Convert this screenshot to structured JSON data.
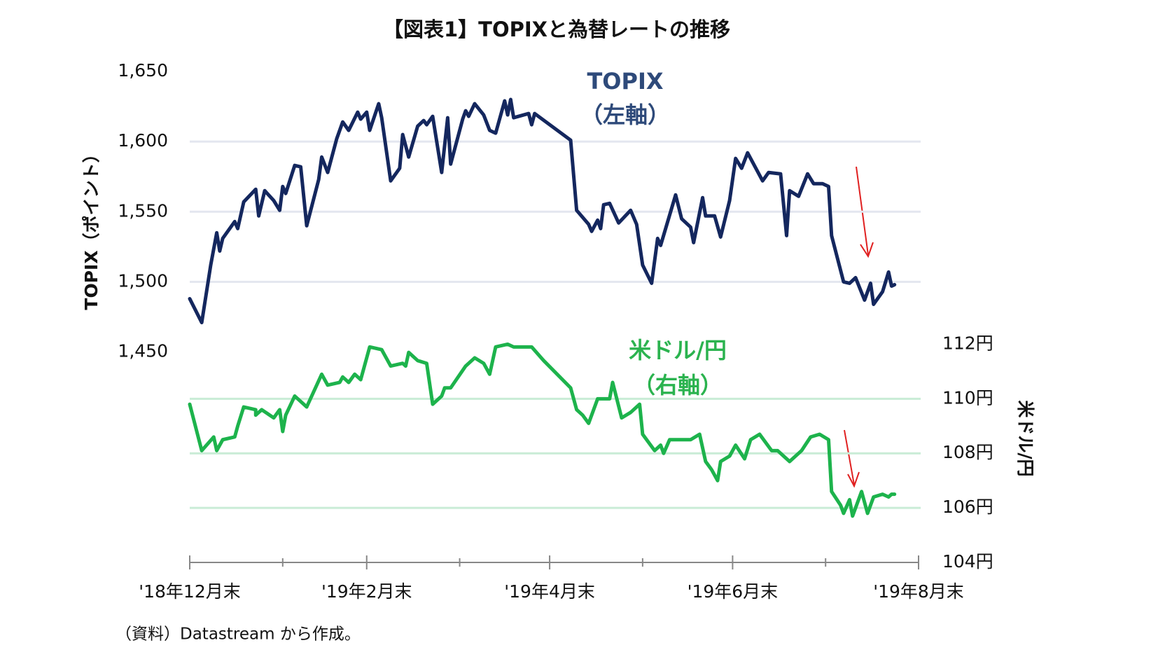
{
  "chart_data": {
    "type": "line",
    "title": "【図表1】TOPIXと為替レートの推移",
    "y_label": "TOPIX（ポイント）",
    "y2_label": "米ドル/円",
    "annotations": [
      "TOPIX",
      "（左軸）",
      "米ドル/円",
      "（右軸）"
    ],
    "source": "（資料）Datastream から作成。",
    "xlim": [
      0,
      243
    ],
    "xticks": [
      {
        "value": 0,
        "label": "'18年12月末"
      },
      {
        "value": 59,
        "label": "'19年2月末"
      },
      {
        "value": 120,
        "label": "'19年4月末"
      },
      {
        "value": 181,
        "label": "'19年6月末"
      },
      {
        "value": 243,
        "label": "'19年8月末"
      }
    ],
    "xminor": [
      31,
      90,
      151,
      212
    ],
    "ylim": [
      1300,
      1650
    ],
    "yticks": [
      {
        "value": 1450,
        "label": "1,450"
      },
      {
        "value": 1500,
        "label": "1,500"
      },
      {
        "value": 1550,
        "label": "1,550"
      },
      {
        "value": 1600,
        "label": "1,600"
      },
      {
        "value": 1650,
        "label": "1,650"
      }
    ],
    "y2lim": [
      104,
      122
    ],
    "y2ticks": [
      {
        "value": 104,
        "label": "104円"
      },
      {
        "value": 106,
        "label": "106円"
      },
      {
        "value": 108,
        "label": "108円"
      },
      {
        "value": 110,
        "label": "110円"
      },
      {
        "value": 112,
        "label": "112円"
      }
    ],
    "grid": true,
    "series": [
      {
        "name": "TOPIX",
        "color": "#14275e",
        "x": [
          0,
          4,
          7,
          9,
          10,
          11,
          15,
          16,
          18,
          22,
          23,
          25,
          28,
          30,
          31,
          32,
          35,
          37,
          39,
          43,
          44,
          46,
          49,
          51,
          53,
          56,
          57,
          59,
          60,
          63,
          64,
          67,
          70,
          71,
          73,
          76,
          78,
          79,
          81,
          84,
          86,
          87,
          91,
          92,
          93,
          95,
          98,
          100,
          102,
          105,
          106,
          107,
          108,
          113,
          114,
          115,
          127,
          129,
          133,
          134,
          136,
          137,
          138,
          140,
          143,
          147,
          149,
          151,
          154,
          156,
          157,
          162,
          164,
          167,
          168,
          171,
          172,
          175,
          177,
          180,
          182,
          184,
          186,
          191,
          193,
          197,
          199,
          200,
          203,
          206,
          208,
          211,
          213,
          214,
          218,
          220,
          222,
          225,
          227,
          228,
          231,
          233,
          234,
          235
        ],
        "values": [
          1488,
          1471,
          1512,
          1535,
          1522,
          1531,
          1543,
          1538,
          1557,
          1566,
          1547,
          1565,
          1558,
          1551,
          1568,
          1563,
          1583,
          1582,
          1540,
          1573,
          1589,
          1578,
          1602,
          1614,
          1608,
          1621,
          1616,
          1621,
          1608,
          1627,
          1617,
          1572,
          1581,
          1605,
          1589,
          1611,
          1615,
          1612,
          1618,
          1578,
          1617,
          1584,
          1616,
          1622,
          1618,
          1627,
          1619,
          1608,
          1606,
          1629,
          1619,
          1630,
          1617,
          1620,
          1612,
          1620,
          1601,
          1551,
          1541,
          1536,
          1544,
          1538,
          1555,
          1556,
          1542,
          1551,
          1541,
          1512,
          1499,
          1531,
          1526,
          1562,
          1545,
          1539,
          1528,
          1560,
          1547,
          1547,
          1532,
          1558,
          1588,
          1581,
          1592,
          1572,
          1578,
          1577,
          1533,
          1565,
          1561,
          1577,
          1570,
          1570,
          1568,
          1533,
          1500,
          1499,
          1503,
          1487,
          1499,
          1484,
          1493,
          1507,
          1497,
          1498
        ]
      },
      {
        "name": "米ドル/円",
        "color": "#1db34c",
        "axis": "y2",
        "x": [
          0,
          4,
          8,
          9,
          11,
          15,
          16,
          18,
          22,
          22,
          24,
          28,
          30,
          31,
          32,
          35,
          39,
          44,
          46,
          50,
          51,
          53,
          55,
          57,
          60,
          64,
          67,
          71,
          72,
          73,
          76,
          79,
          81,
          84,
          85,
          87,
          92,
          95,
          98,
          100,
          102,
          106,
          108,
          114,
          118,
          127,
          129,
          131,
          133,
          136,
          140,
          141,
          144,
          147,
          150,
          151,
          155,
          157,
          158,
          160,
          162,
          164,
          167,
          170,
          172,
          174,
          176,
          177,
          180,
          182,
          185,
          187,
          190,
          194,
          196,
          198,
          200,
          204,
          207,
          210,
          213,
          214,
          217,
          218,
          220,
          221,
          224,
          226,
          228,
          231,
          233,
          234,
          235
        ],
        "values": [
          109.8,
          108.1,
          108.6,
          108.1,
          108.5,
          108.6,
          109.0,
          109.7,
          109.6,
          109.4,
          109.6,
          109.3,
          109.6,
          108.8,
          109.4,
          110.1,
          109.7,
          110.9,
          110.5,
          110.6,
          110.8,
          110.6,
          110.9,
          110.7,
          111.9,
          111.8,
          111.2,
          111.3,
          111.2,
          111.7,
          111.4,
          111.3,
          109.8,
          110.1,
          110.4,
          110.4,
          111.2,
          111.5,
          111.3,
          110.9,
          111.9,
          112.0,
          111.9,
          111.9,
          111.4,
          110.4,
          109.6,
          109.4,
          109.1,
          110.0,
          110.0,
          110.6,
          109.3,
          109.5,
          109.8,
          108.7,
          108.1,
          108.3,
          108.0,
          108.5,
          108.5,
          108.5,
          108.5,
          108.7,
          107.7,
          107.4,
          107.0,
          107.7,
          107.9,
          108.3,
          107.8,
          108.5,
          108.7,
          108.1,
          108.1,
          107.9,
          107.7,
          108.1,
          108.6,
          108.7,
          108.5,
          106.6,
          106.1,
          105.8,
          106.3,
          105.7,
          106.6,
          105.8,
          106.4,
          106.5,
          106.4,
          106.5,
          106.5
        ]
      }
    ]
  }
}
